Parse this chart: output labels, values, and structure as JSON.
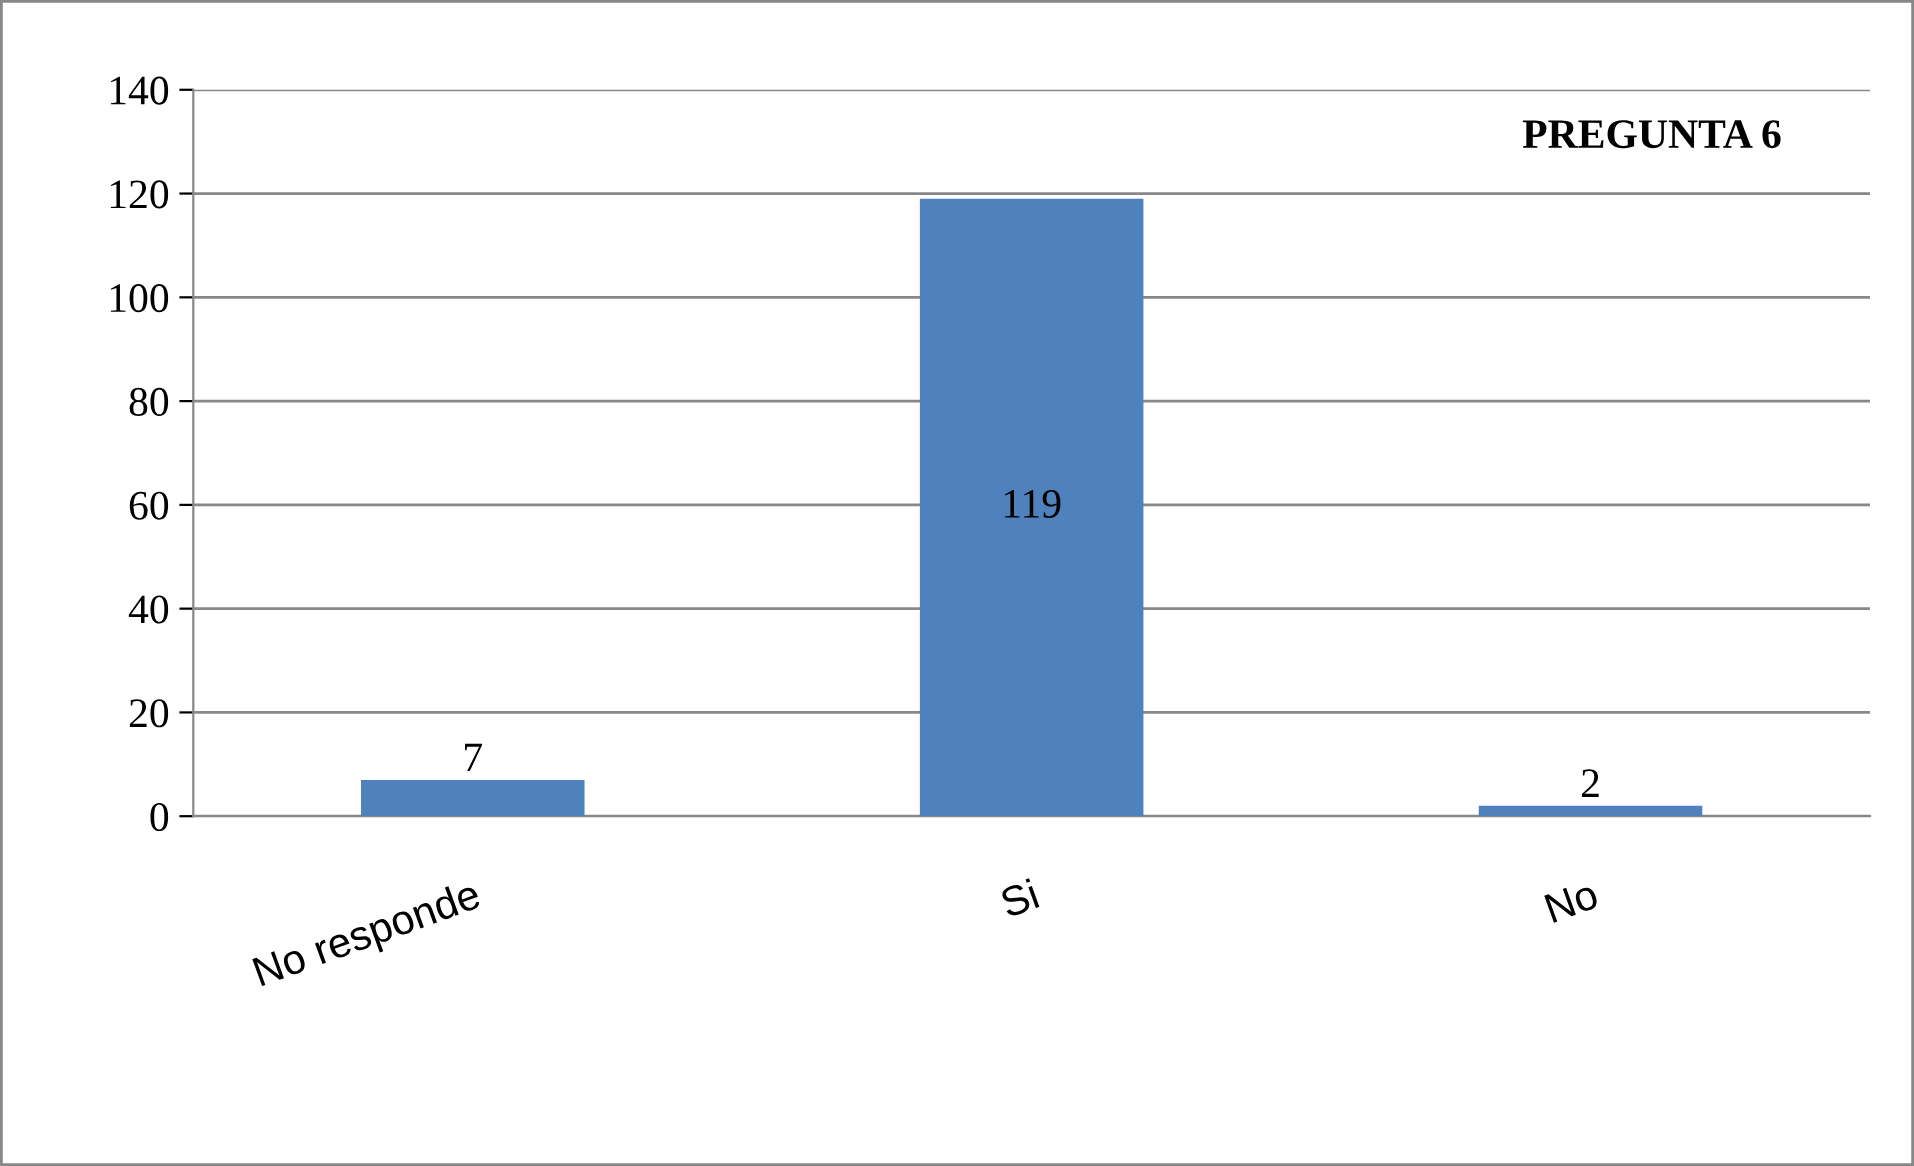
{
  "chart_data": {
    "type": "bar",
    "title": "PREGUNTA 6",
    "categories": [
      "No responde",
      "Si",
      "No"
    ],
    "values": [
      7,
      119,
      2
    ],
    "color": "#4f81bd",
    "ylim": [
      0,
      140
    ],
    "yticks": [
      0,
      20,
      40,
      60,
      80,
      100,
      120,
      140
    ],
    "grid": "y",
    "data_labels": true,
    "legend": false
  }
}
